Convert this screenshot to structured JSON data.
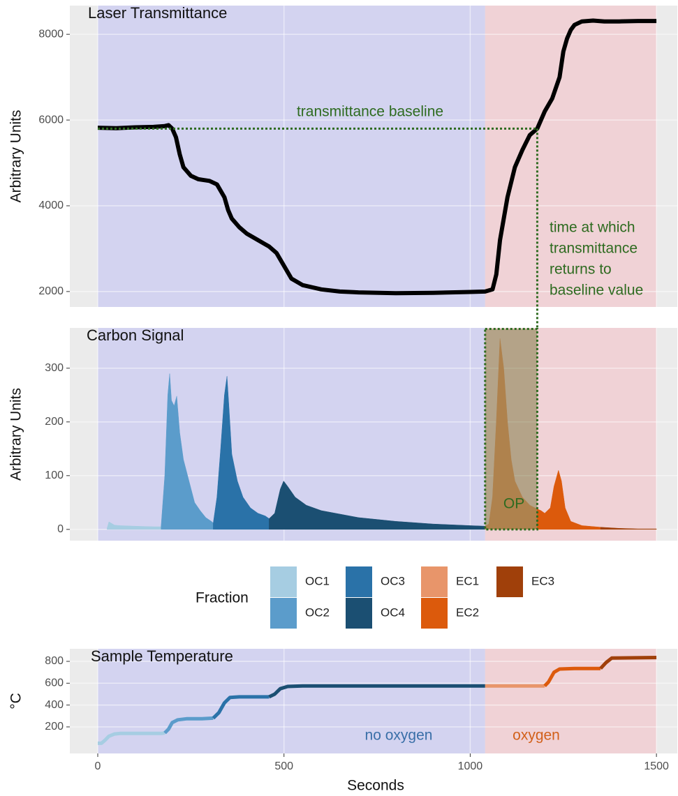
{
  "chart_data": [
    {
      "type": "line",
      "title": "Laser Transmittance",
      "y_label": "Arbitrary Units",
      "ylim": [
        1640,
        8670
      ],
      "yticks": [
        2000,
        4000,
        6000,
        8000
      ],
      "grid": true,
      "color": "#000000",
      "regions": [
        {
          "start": 0,
          "end": 1040,
          "color": "#d3d3f0"
        },
        {
          "start": 1040,
          "end": 1500,
          "color": "#f0d2d6"
        }
      ],
      "x": [
        0,
        50,
        100,
        150,
        180,
        190,
        200,
        210,
        220,
        230,
        250,
        270,
        300,
        320,
        340,
        350,
        360,
        380,
        400,
        430,
        460,
        480,
        500,
        520,
        550,
        600,
        650,
        700,
        800,
        900,
        1000,
        1040,
        1060,
        1070,
        1080,
        1100,
        1120,
        1140,
        1160,
        1180,
        1200,
        1220,
        1240,
        1250,
        1260,
        1270,
        1280,
        1300,
        1330,
        1360,
        1400,
        1450,
        1500
      ],
      "values": [
        5820,
        5810,
        5830,
        5840,
        5860,
        5880,
        5800,
        5600,
        5200,
        4900,
        4700,
        4620,
        4580,
        4500,
        4200,
        3900,
        3700,
        3500,
        3350,
        3200,
        3050,
        2900,
        2600,
        2300,
        2150,
        2050,
        2000,
        1980,
        1960,
        1970,
        1990,
        2000,
        2050,
        2400,
        3200,
        4200,
        4900,
        5300,
        5650,
        5800,
        6200,
        6500,
        7000,
        7600,
        7900,
        8100,
        8220,
        8300,
        8320,
        8300,
        8300,
        8310,
        8310
      ],
      "baseline": 5800,
      "baseline_end": 1180,
      "baseline_label": "transmittance baseline",
      "return_label": [
        "time at which",
        "transmittance",
        "returns to",
        "baseline value"
      ]
    },
    {
      "type": "area",
      "title": "Carbon Signal",
      "y_label": "Arbitrary Units",
      "ylim": [
        -21,
        375
      ],
      "yticks": [
        0,
        100,
        200,
        300
      ],
      "grid": true,
      "legend_title": "Fraction",
      "series": [
        {
          "name": "OC1",
          "color": "#a6cde2",
          "x": [
            25,
            30,
            35,
            45,
            60,
            100,
            150,
            170
          ],
          "values": [
            2,
            14,
            12,
            8,
            7,
            6,
            5,
            5
          ]
        },
        {
          "name": "OC2",
          "color": "#5b9ccb",
          "x": [
            170,
            180,
            188,
            193,
            198,
            205,
            212,
            220,
            230,
            245,
            260,
            275,
            290,
            305,
            310
          ],
          "values": [
            5,
            100,
            250,
            290,
            240,
            230,
            248,
            180,
            130,
            90,
            50,
            35,
            22,
            15,
            12
          ]
        },
        {
          "name": "OC3",
          "color": "#2a72a8",
          "x": [
            310,
            320,
            330,
            340,
            347,
            352,
            360,
            375,
            390,
            410,
            430,
            450,
            460
          ],
          "values": [
            12,
            60,
            150,
            250,
            285,
            230,
            140,
            90,
            60,
            40,
            30,
            25,
            20
          ]
        },
        {
          "name": "OC4",
          "color": "#1b4f72",
          "x": [
            460,
            475,
            490,
            499,
            510,
            530,
            560,
            600,
            700,
            800,
            900,
            1000,
            1040
          ],
          "values": [
            20,
            30,
            75,
            90,
            80,
            60,
            45,
            35,
            22,
            15,
            10,
            7,
            6
          ]
        },
        {
          "name": "EC1",
          "color": "#e8956a",
          "x": [
            1040,
            1050,
            1060,
            1070,
            1080,
            1090,
            1100,
            1110,
            1120,
            1140,
            1160,
            1180
          ],
          "values": [
            6,
            10,
            60,
            200,
            355,
            300,
            200,
            130,
            90,
            60,
            45,
            38
          ]
        },
        {
          "name": "EC2",
          "color": "#dc5a0c",
          "x": [
            1180,
            1190,
            1200,
            1215,
            1225,
            1237,
            1245,
            1255,
            1270,
            1300,
            1350
          ],
          "values": [
            38,
            35,
            30,
            40,
            80,
            110,
            90,
            40,
            15,
            7,
            4
          ]
        },
        {
          "name": "EC3",
          "color": "#a0400a",
          "x": [
            1350,
            1400,
            1450,
            1500
          ],
          "values": [
            4,
            2,
            1,
            1
          ]
        }
      ],
      "op_box": {
        "x": [
          1040,
          1180
        ],
        "y": [
          0,
          373
        ]
      },
      "op_label": "OP"
    },
    {
      "type": "line",
      "title": "Sample Temperature",
      "y_label": "°C",
      "x_label": "Seconds",
      "ylim": [
        -43,
        915
      ],
      "yticks": [
        200,
        400,
        600,
        800
      ],
      "grid": true,
      "xlim": [
        -75,
        1556
      ],
      "xticks": [
        0,
        500,
        1000,
        1500
      ],
      "series": [
        {
          "name": "OC1",
          "color": "#a6cde2",
          "x": [
            0,
            10,
            20,
            30,
            45,
            60,
            100,
            170,
            180
          ],
          "values": [
            50,
            50,
            80,
            115,
            135,
            140,
            140,
            140,
            145
          ]
        },
        {
          "name": "OC2",
          "color": "#5b9ccb",
          "x": [
            180,
            190,
            200,
            215,
            240,
            280,
            310
          ],
          "values": [
            145,
            180,
            240,
            265,
            275,
            275,
            280
          ]
        },
        {
          "name": "OC3",
          "color": "#2a72a8",
          "x": [
            310,
            325,
            340,
            355,
            380,
            460
          ],
          "values": [
            280,
            330,
            420,
            470,
            475,
            475
          ]
        },
        {
          "name": "OC4",
          "color": "#1b4f72",
          "x": [
            460,
            475,
            490,
            510,
            550,
            1040
          ],
          "values": [
            475,
            500,
            550,
            570,
            575,
            575
          ]
        },
        {
          "name": "EC1",
          "color": "#e8956a",
          "x": [
            1040,
            1200
          ],
          "values": [
            575,
            575
          ]
        },
        {
          "name": "EC2",
          "color": "#dc5a0c",
          "x": [
            1200,
            1210,
            1225,
            1240,
            1280,
            1350
          ],
          "values": [
            575,
            610,
            700,
            730,
            735,
            735
          ]
        },
        {
          "name": "EC3",
          "color": "#a0400a",
          "x": [
            1350,
            1365,
            1380,
            1500
          ],
          "values": [
            735,
            790,
            830,
            835
          ]
        }
      ],
      "notes": [
        {
          "text": "no oxygen",
          "color": "#3a6fa8"
        },
        {
          "text": "oxygen",
          "color": "#d2601a"
        }
      ]
    }
  ]
}
